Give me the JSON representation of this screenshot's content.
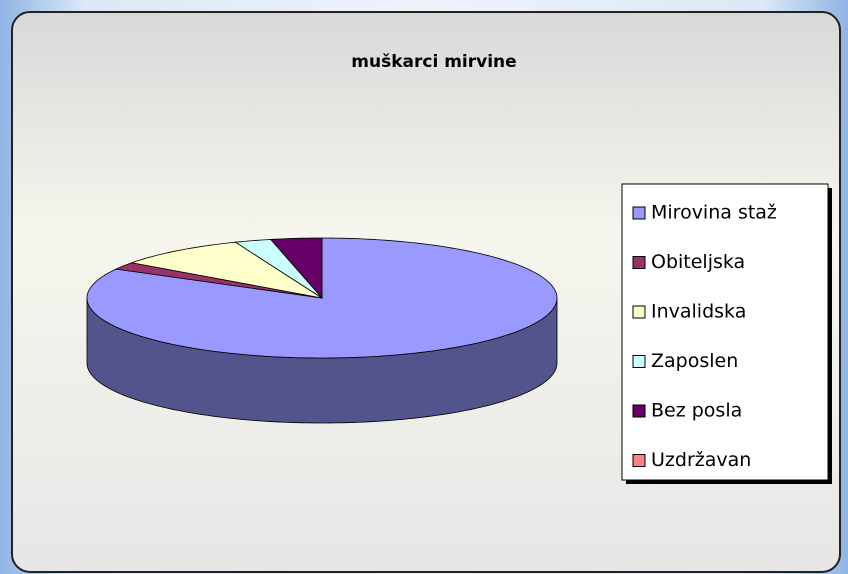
{
  "chart_data": {
    "type": "pie3d",
    "title": "muškarci mirvine",
    "categories": [
      "Mirovina staž",
      "Obiteljska",
      "Invalidska",
      "Zaposlen",
      "Bez posla",
      "Uzdržavan"
    ],
    "values": [
      83,
      2,
      9,
      2.5,
      3.5,
      0
    ],
    "colors": [
      "#9999ff",
      "#993366",
      "#ffffcc",
      "#ccffff",
      "#660066",
      "#ff8080"
    ],
    "legend": "right"
  }
}
